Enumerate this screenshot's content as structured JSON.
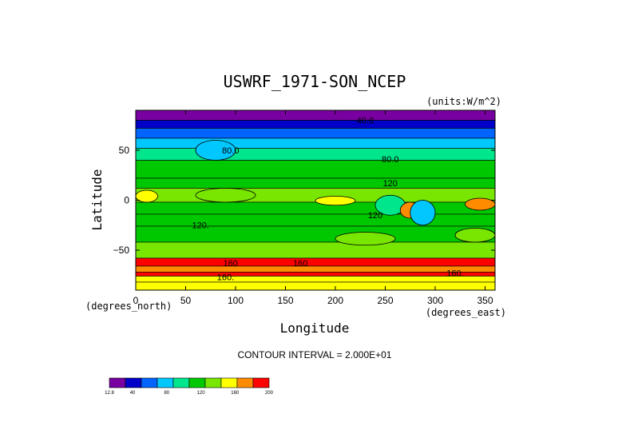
{
  "chart_data": {
    "type": "heatmap",
    "title": "USWRF_1971-SON_NCEP",
    "units_label": "(units:W/m^2)",
    "xlabel": "Longitude",
    "ylabel": "Latitude",
    "x_unit_label": "(degrees_east)",
    "y_unit_label": "(degrees_north)",
    "xlim": [
      0,
      360
    ],
    "ylim": [
      -90,
      90
    ],
    "x_ticks": [
      "0",
      "50",
      "100",
      "150",
      "200",
      "250",
      "300",
      "350"
    ],
    "y_ticks": [
      "50",
      "0",
      "-50"
    ],
    "contour_interval_label": "CONTOUR INTERVAL = 2.000E+01",
    "contour_labels": [
      "40.0",
      "80.0",
      "80.0",
      "120",
      "120.",
      "120",
      "160",
      "160",
      "160.",
      "160."
    ],
    "colorbar_ticks": [
      "12.8",
      "40",
      "80",
      "120",
      "160",
      "200"
    ],
    "colorbar_range": [
      12.8,
      200
    ],
    "colors": [
      "#7800a0",
      "#0000c8",
      "#0064ff",
      "#00c8ff",
      "#00e68c",
      "#00c800",
      "#78e600",
      "#ffff00",
      "#ff8c00",
      "#ff0000"
    ],
    "latitude_bands": [
      {
        "lat_from": 90,
        "lat_to": 80,
        "value": 20
      },
      {
        "lat_from": 80,
        "lat_to": 72,
        "value": 35
      },
      {
        "lat_from": 72,
        "lat_to": 62,
        "value": 55
      },
      {
        "lat_from": 62,
        "lat_to": 52,
        "value": 70
      },
      {
        "lat_from": 52,
        "lat_to": 40,
        "value": 95
      },
      {
        "lat_from": 40,
        "lat_to": 22,
        "value": 110
      },
      {
        "lat_from": 22,
        "lat_to": 12,
        "value": 125
      },
      {
        "lat_from": 12,
        "lat_to": -2,
        "value": 145
      },
      {
        "lat_from": -2,
        "lat_to": -14,
        "value": 128
      },
      {
        "lat_from": -14,
        "lat_to": -26,
        "value": 120
      },
      {
        "lat_from": -26,
        "lat_to": -42,
        "value": 128
      },
      {
        "lat_from": -42,
        "lat_to": -58,
        "value": 145
      },
      {
        "lat_from": -58,
        "lat_to": -66,
        "value": 185
      },
      {
        "lat_from": -66,
        "lat_to": -72,
        "value": 170
      },
      {
        "lat_from": -72,
        "lat_to": -76,
        "value": 190
      },
      {
        "lat_from": -76,
        "lat_to": -82,
        "value": 165
      },
      {
        "lat_from": -82,
        "lat_to": -90,
        "value": 150
      }
    ],
    "regions": [
      {
        "lon": [
          0,
          22
        ],
        "lat": [
          -2,
          10
        ],
        "value": 165
      },
      {
        "lon": [
          60,
          120
        ],
        "lat": [
          -2,
          12
        ],
        "value": 145
      },
      {
        "lon": [
          180,
          220
        ],
        "lat": [
          -5,
          4
        ],
        "value": 150
      },
      {
        "lon": [
          240,
          270
        ],
        "lat": [
          -15,
          5
        ],
        "value": 100
      },
      {
        "lon": [
          265,
          285
        ],
        "lat": [
          -18,
          -2
        ],
        "value": 175
      },
      {
        "lon": [
          275,
          300
        ],
        "lat": [
          -25,
          0
        ],
        "value": 85
      },
      {
        "lon": [
          330,
          360
        ],
        "lat": [
          -10,
          2
        ],
        "value": 175
      },
      {
        "lon": [
          60,
          100
        ],
        "lat": [
          40,
          60
        ],
        "value": 80
      },
      {
        "lon": [
          320,
          360
        ],
        "lat": [
          -42,
          -28
        ],
        "value": 145
      },
      {
        "lon": [
          200,
          260
        ],
        "lat": [
          -45,
          -32
        ],
        "value": 145
      }
    ]
  }
}
